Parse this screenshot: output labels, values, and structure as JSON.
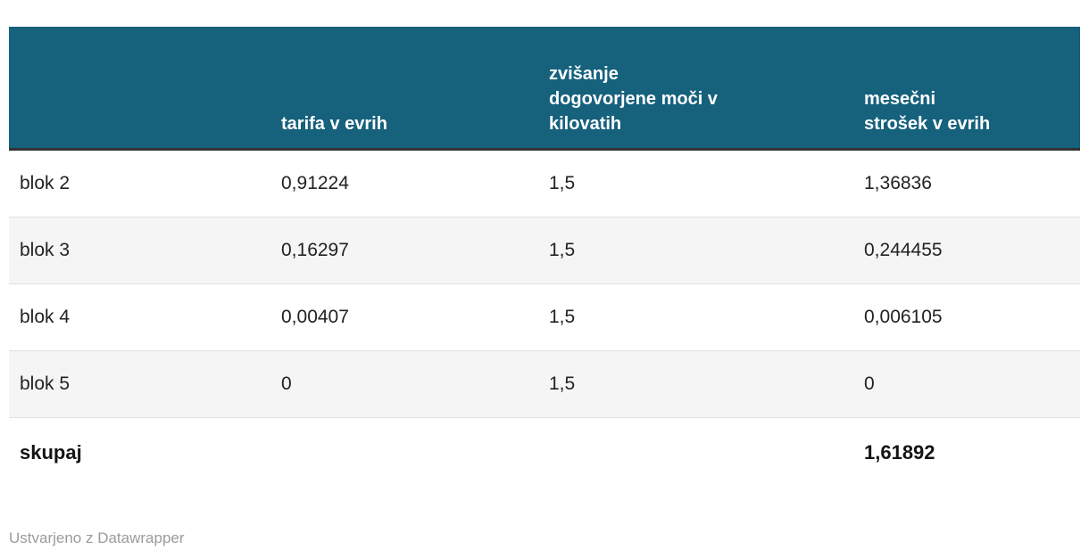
{
  "chart_data": {
    "type": "table",
    "columns": [
      "",
      "tarifa v evrih",
      "zvišanje dogovorjene moči v kilovatih",
      "mesečni strošek v evrih"
    ],
    "rows": [
      {
        "label": "blok 2",
        "tarifa_v_evrih": 0.91224,
        "zvisanje_dogovorjene_moci_kw": 1.5,
        "mesecni_strosek_eur": 1.36836
      },
      {
        "label": "blok 3",
        "tarifa_v_evrih": 0.16297,
        "zvisanje_dogovorjene_moci_kw": 1.5,
        "mesecni_strosek_eur": 0.244455
      },
      {
        "label": "blok 4",
        "tarifa_v_evrih": 0.00407,
        "zvisanje_dogovorjene_moci_kw": 1.5,
        "mesecni_strosek_eur": 0.006105
      },
      {
        "label": "blok 5",
        "tarifa_v_evrih": 0,
        "zvisanje_dogovorjene_moci_kw": 1.5,
        "mesecni_strosek_eur": 0
      }
    ],
    "total": {
      "label": "skupaj",
      "mesecni_strosek_eur": 1.61892
    },
    "layout_hints": {
      "header_alignment": "left-bottom",
      "cell_alignment": "left",
      "alternating_rows": true
    }
  },
  "table": {
    "headers": [
      {
        "label": ""
      },
      {
        "label": "tarifa v evrih"
      },
      {
        "label": "zvišanje\ndogovorjene moči v\nkilovatih"
      },
      {
        "label": "mesečni\nstrošek v evrih"
      }
    ],
    "rows": [
      {
        "label": "blok 2",
        "cells": [
          "0,91224",
          "1,5",
          "1,36836"
        ]
      },
      {
        "label": "blok 3",
        "cells": [
          "0,16297",
          "1,5",
          "0,244455"
        ]
      },
      {
        "label": "blok 4",
        "cells": [
          "0,00407",
          "1,5",
          "0,006105"
        ]
      },
      {
        "label": "blok 5",
        "cells": [
          "0",
          "1,5",
          "0"
        ]
      }
    ],
    "total": {
      "label": "skupaj",
      "cells": [
        "",
        "",
        "1,61892"
      ]
    }
  },
  "footer": {
    "credit": "Ustvarjeno z Datawrapper"
  },
  "colors": {
    "header_background": "#16617c",
    "header_text": "#ffffff",
    "header_bottom_border": "#333333",
    "row_alt_background": "#f5f5f5",
    "row_divider": "#e1e1e1",
    "body_text": "#222222",
    "credit_text": "#9b9b9b"
  }
}
